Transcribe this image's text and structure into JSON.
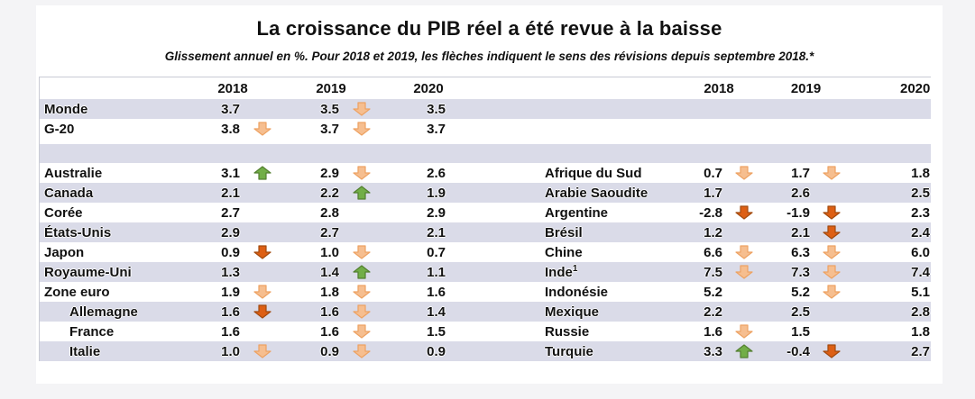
{
  "colors": {
    "stripe": "#dadbe8",
    "arrow_down_light": "#F6BE8F",
    "arrow_down_light_border": "#EDA263",
    "arrow_down_dark": "#DD5F14",
    "arrow_down_dark_border": "#A34A0E",
    "arrow_up_green": "#72AE47",
    "arrow_up_green_border": "#538030",
    "background": "#f4f4f6"
  },
  "chart_data": {
    "type": "table",
    "title": "La croissance du PIB réel a été revue à la baisse",
    "subtitle": "Glissement annuel en %. Pour 2018 et 2019, les flèches indiquent le sens des révisions depuis septembre 2018.*",
    "columns": [
      "2018",
      "2019",
      "2020"
    ],
    "rows": [
      {
        "striped": true,
        "left": {
          "label": "Monde",
          "values": [
            "3.7",
            "3.5",
            "3.5"
          ],
          "arrows": [
            null,
            "down-light",
            null
          ]
        },
        "right": null
      },
      {
        "striped": false,
        "left": {
          "label": "G-20",
          "values": [
            "3.8",
            "3.7",
            "3.7"
          ],
          "arrows": [
            "down-light",
            "down-light",
            null
          ]
        },
        "right": null
      },
      {
        "type": "gap"
      },
      {
        "type": "spacer",
        "striped": true
      },
      {
        "striped": false,
        "left": {
          "label": "Australie",
          "values": [
            "3.1",
            "2.9",
            "2.6"
          ],
          "arrows": [
            "up-green",
            "down-light",
            null
          ]
        },
        "right": {
          "label": "Afrique du Sud",
          "values": [
            "0.7",
            "1.7",
            "1.8"
          ],
          "arrows": [
            "down-light",
            "down-light",
            null
          ]
        }
      },
      {
        "striped": true,
        "left": {
          "label": "Canada",
          "values": [
            "2.1",
            "2.2",
            "1.9"
          ],
          "arrows": [
            null,
            "up-green",
            null
          ]
        },
        "right": {
          "label": "Arabie Saoudite",
          "values": [
            "1.7",
            "2.6",
            "2.5"
          ],
          "arrows": [
            null,
            null,
            null
          ]
        }
      },
      {
        "striped": false,
        "left": {
          "label": "Corée",
          "values": [
            "2.7",
            "2.8",
            "2.9"
          ],
          "arrows": [
            null,
            null,
            null
          ]
        },
        "right": {
          "label": "Argentine",
          "values": [
            "-2.8",
            "-1.9",
            "2.3"
          ],
          "arrows": [
            "down-dark",
            "down-dark",
            null
          ]
        }
      },
      {
        "striped": true,
        "left": {
          "label": "États-Unis",
          "values": [
            "2.9",
            "2.7",
            "2.1"
          ],
          "arrows": [
            null,
            null,
            null
          ]
        },
        "right": {
          "label": "Brésil",
          "values": [
            "1.2",
            "2.1",
            "2.4"
          ],
          "arrows": [
            null,
            "down-dark",
            null
          ]
        }
      },
      {
        "striped": false,
        "left": {
          "label": "Japon",
          "values": [
            "0.9",
            "1.0",
            "0.7"
          ],
          "arrows": [
            "down-dark",
            "down-light",
            null
          ]
        },
        "right": {
          "label": "Chine",
          "values": [
            "6.6",
            "6.3",
            "6.0"
          ],
          "arrows": [
            "down-light",
            "down-light",
            null
          ]
        }
      },
      {
        "striped": true,
        "left": {
          "label": "Royaume-Uni",
          "values": [
            "1.3",
            "1.4",
            "1.1"
          ],
          "arrows": [
            null,
            "up-green",
            null
          ]
        },
        "right": {
          "label": "Inde",
          "sup": "1",
          "values": [
            "7.5",
            "7.3",
            "7.4"
          ],
          "arrows": [
            "down-light",
            "down-light",
            null
          ]
        }
      },
      {
        "striped": false,
        "left": {
          "label": "Zone euro",
          "values": [
            "1.9",
            "1.8",
            "1.6"
          ],
          "arrows": [
            "down-light",
            "down-light",
            null
          ]
        },
        "right": {
          "label": "Indonésie",
          "values": [
            "5.2",
            "5.2",
            "5.1"
          ],
          "arrows": [
            null,
            "down-light",
            null
          ]
        }
      },
      {
        "striped": true,
        "left": {
          "label": "Allemagne",
          "indent": true,
          "values": [
            "1.6",
            "1.6",
            "1.4"
          ],
          "arrows": [
            "down-dark",
            "down-light",
            null
          ]
        },
        "right": {
          "label": "Mexique",
          "values": [
            "2.2",
            "2.5",
            "2.8"
          ],
          "arrows": [
            null,
            null,
            null
          ]
        }
      },
      {
        "striped": false,
        "left": {
          "label": "France",
          "indent": true,
          "values": [
            "1.6",
            "1.6",
            "1.5"
          ],
          "arrows": [
            null,
            "down-light",
            null
          ]
        },
        "right": {
          "label": "Russie",
          "values": [
            "1.6",
            "1.5",
            "1.8"
          ],
          "arrows": [
            "down-light",
            null,
            null
          ]
        }
      },
      {
        "striped": true,
        "left": {
          "label": "Italie",
          "indent": true,
          "values": [
            "1.0",
            "0.9",
            "0.9"
          ],
          "arrows": [
            "down-light",
            "down-light",
            null
          ]
        },
        "right": {
          "label": "Turquie",
          "values": [
            "3.3",
            "-0.4",
            "2.7"
          ],
          "arrows": [
            "up-green",
            "down-dark",
            null
          ]
        }
      }
    ]
  }
}
